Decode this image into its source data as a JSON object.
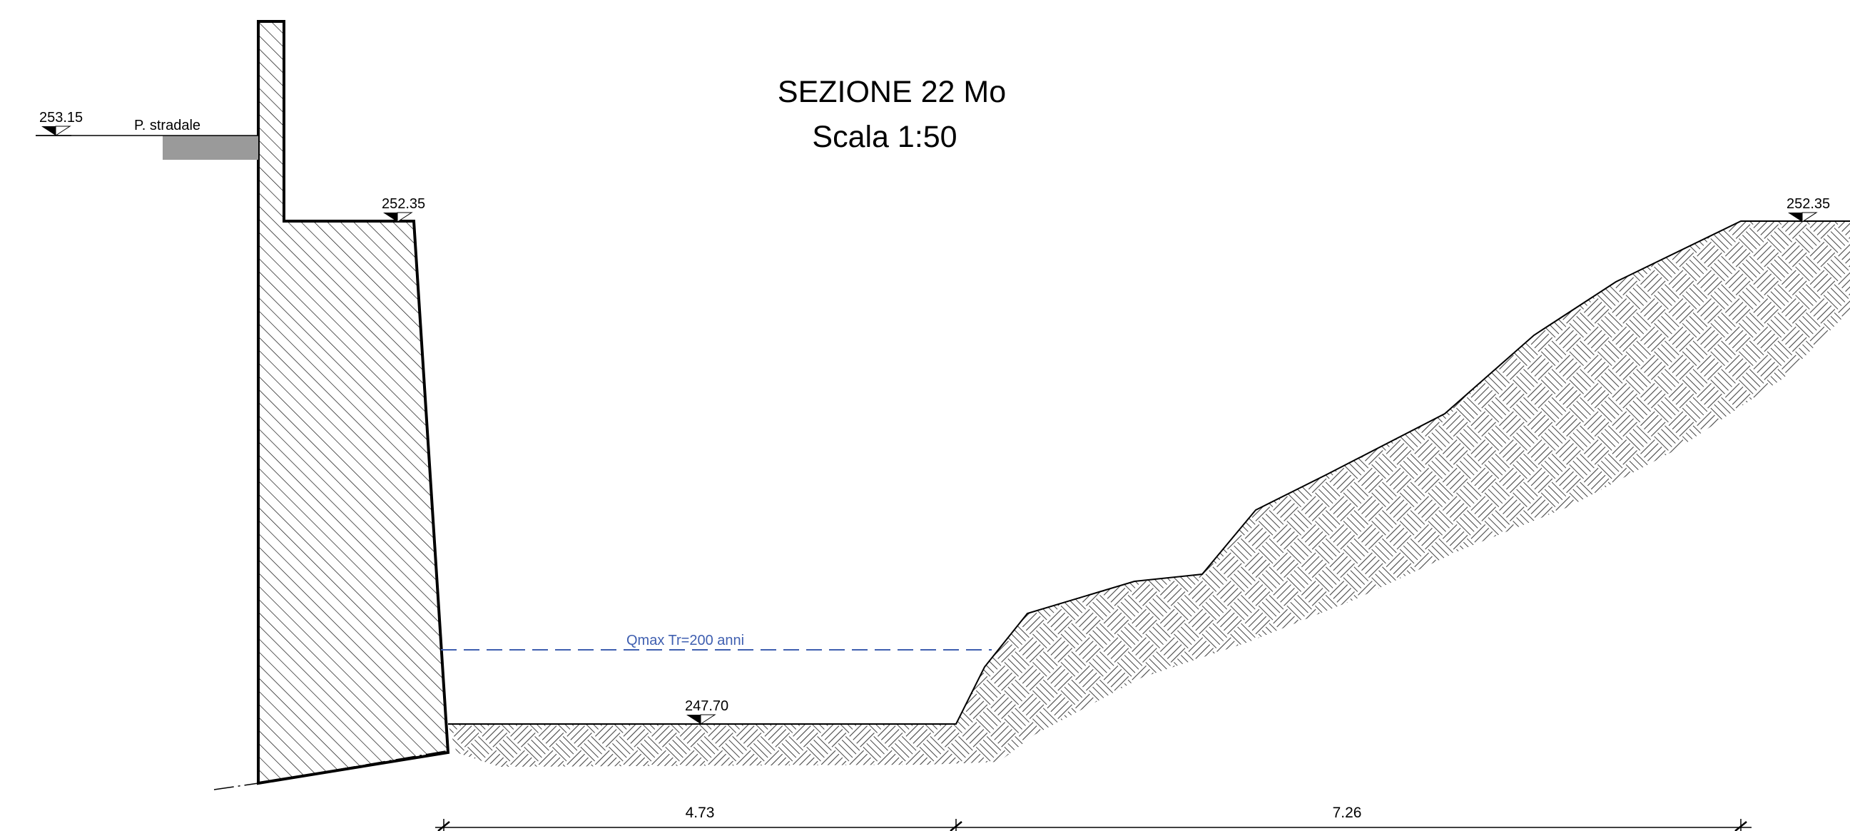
{
  "title": {
    "line1": "SEZIONE 22 Mo",
    "line2": "Scala 1:50"
  },
  "elevations": {
    "road_level": "253.15",
    "wall_top": "252.35",
    "bank_top": "252.35",
    "channel_bed": "247.70"
  },
  "labels": {
    "road": "P. stradale",
    "flood_level": "Qmax Tr=200 anni"
  },
  "dimensions": {
    "channel_width": "4.73",
    "bank_width": "7.26"
  },
  "colors": {
    "lines": "#000000",
    "flood_line": "#3f5fb0",
    "road_slab": "#9a9a9a"
  }
}
